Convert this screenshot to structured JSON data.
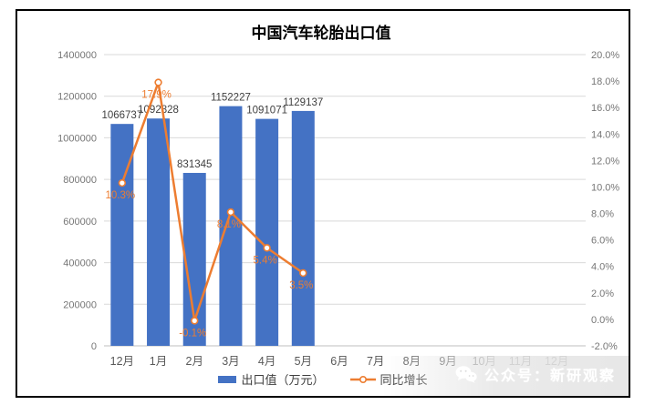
{
  "title": "中国汽车轮胎出口值",
  "chart_data": {
    "type": "bar",
    "subtype": "combo-bar-line",
    "title": "中国汽车轮胎出口值",
    "categories": [
      "12月",
      "1月",
      "2月",
      "3月",
      "4月",
      "5月",
      "6月",
      "7月",
      "8月",
      "9月",
      "10月",
      "11月",
      "12月"
    ],
    "series": [
      {
        "name": "出口值（万元）",
        "type": "bar",
        "axis": "left",
        "color": "#4472C4",
        "values": [
          1066737,
          1092828,
          831345,
          1152227,
          1091071,
          1129137,
          null,
          null,
          null,
          null,
          null,
          null,
          null
        ]
      },
      {
        "name": "同比增长",
        "type": "line",
        "axis": "right",
        "color": "#ED7D31",
        "values": [
          10.3,
          17.9,
          -0.1,
          8.1,
          5.4,
          3.5,
          null,
          null,
          null,
          null,
          null,
          null,
          null
        ]
      }
    ],
    "left_axis": {
      "min": 0,
      "max": 1400000,
      "step": 200000
    },
    "right_axis": {
      "min": -2.0,
      "max": 20.0,
      "step": 2.0,
      "suffix": "%",
      "decimals": 1
    },
    "grid": true,
    "legend_position": "bottom",
    "data_labels": true
  },
  "legend": {
    "items": [
      {
        "label": "出口值（万元）",
        "swatch": "bar",
        "color": "#4472C4"
      },
      {
        "label": "同比增长",
        "swatch": "line-marker",
        "color": "#ED7D31"
      }
    ]
  },
  "watermark": {
    "text": "公众号：新研观察"
  },
  "colors": {
    "bar": "#4472C4",
    "line": "#ED7D31",
    "grid": "#D9D9D9",
    "baseline": "#BFBFBF",
    "axis_text": "#767676",
    "category_text": "#595959",
    "bar_label_text": "#404040",
    "title_text": "#000000"
  }
}
